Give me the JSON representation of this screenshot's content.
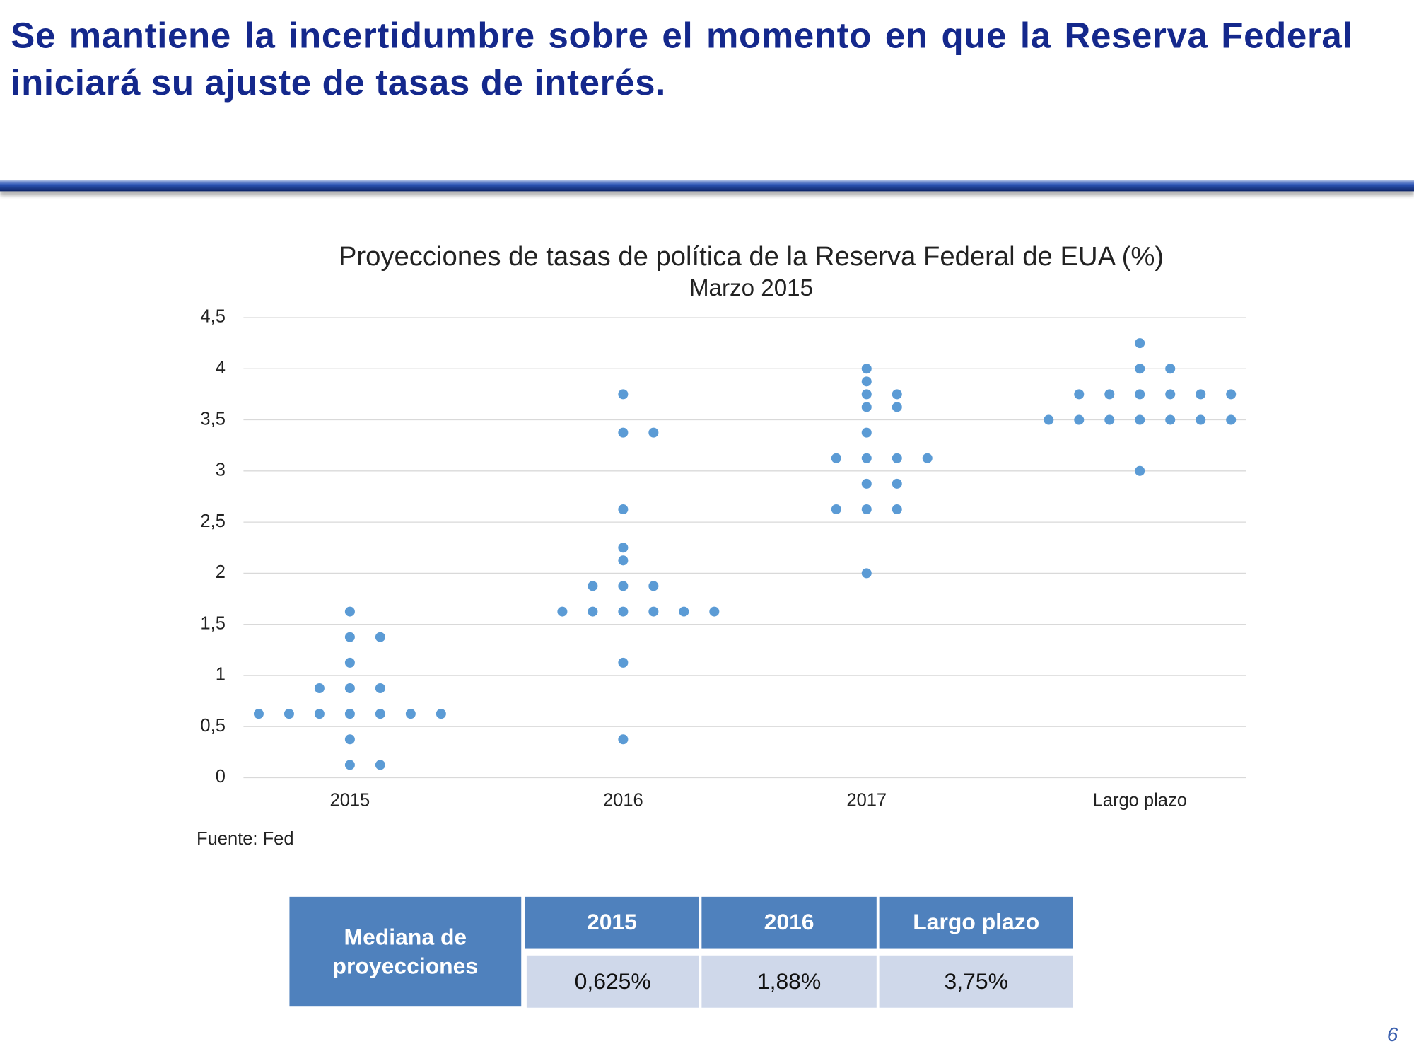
{
  "header": {
    "title": "Se mantiene la incertidumbre sobre el momento en que la Reserva Federal iniciará su ajuste de tasas de interés."
  },
  "chart_data": {
    "type": "dot",
    "title": "Proyecciones de tasas de política de la Reserva Federal de EUA (%)",
    "subtitle": "Marzo 2015",
    "categories": [
      "2015",
      "2016",
      "2017",
      "Largo plazo"
    ],
    "values": [
      [
        1.625,
        1.375,
        1.375,
        1.125,
        0.875,
        0.875,
        0.875,
        0.625,
        0.625,
        0.625,
        0.625,
        0.625,
        0.625,
        0.625,
        0.375,
        0.125,
        0.125
      ],
      [
        3.75,
        3.375,
        3.375,
        2.625,
        2.25,
        2.125,
        1.875,
        1.875,
        1.875,
        1.625,
        1.625,
        1.625,
        1.625,
        1.625,
        1.625,
        1.125,
        0.375
      ],
      [
        4,
        3.875,
        3.75,
        3.75,
        3.625,
        3.625,
        3.375,
        3.125,
        3.125,
        3.125,
        3.125,
        2.875,
        2.875,
        2.625,
        2.625,
        2.625,
        2
      ],
      [
        4.25,
        4,
        4,
        3.75,
        3.75,
        3.75,
        3.75,
        3.75,
        3.75,
        3.5,
        3.5,
        3.5,
        3.5,
        3.5,
        3.5,
        3.5,
        3
      ]
    ],
    "color": "#5b9bd5",
    "ylim": [
      0,
      4.5
    ],
    "yticks": [
      0,
      {
        "value": 0.5,
        "label": "0,5"
      },
      1,
      {
        "value": 1.5,
        "label": "1,5"
      },
      2,
      {
        "value": 2.5,
        "label": "2,5"
      },
      3,
      {
        "value": 3.5,
        "label": "3,5"
      },
      4,
      {
        "value": 4.5,
        "label": "4,5"
      }
    ],
    "grid": true,
    "source": "Fuente: Fed"
  },
  "table": {
    "row_header": "Mediana de proyecciones",
    "columns": [
      "2015",
      "2016",
      "Largo plazo"
    ],
    "values": [
      "0,625%",
      "1,88%",
      "3,75%"
    ]
  },
  "page_number": "6"
}
